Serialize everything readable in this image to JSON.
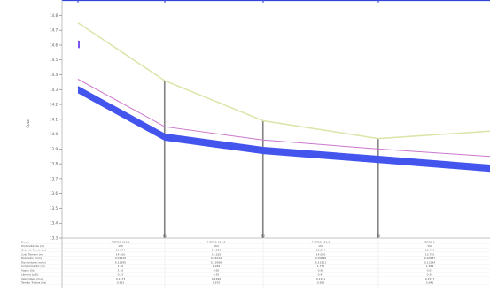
{
  "chart_data": {
    "type": "line",
    "ylabel": "Cota",
    "y_ticks": [
      14.8,
      14.7,
      14.6,
      14.5,
      14.4,
      14.3,
      14.2,
      14.1,
      14.0,
      13.9,
      13.8,
      13.7,
      13.6,
      13.5,
      13.4,
      13.3
    ],
    "ylim": [
      13.3,
      14.88
    ],
    "x": [
      0,
      1,
      2,
      3,
      4
    ],
    "node_labels": [
      "",
      "P1",
      "P2",
      "P3",
      ""
    ],
    "series": [
      {
        "color": "#d8e6a8",
        "values": [
          14.75,
          14.36,
          14.09,
          13.97,
          14.02
        ]
      },
      {
        "color": "#cc77cc",
        "values": [
          14.37,
          14.05,
          13.96,
          13.9,
          13.85
        ]
      },
      {
        "color": "#4455ee",
        "values": [
          14.32,
          14.0,
          13.91,
          13.85,
          13.79
        ]
      },
      {
        "color": "#4455ee",
        "values": [
          14.28,
          13.96,
          13.87,
          13.81,
          13.75
        ]
      }
    ],
    "left_marker": {
      "color": "#7a55ee",
      "y_range": [
        14.58,
        14.63
      ]
    },
    "grid": false,
    "table": {
      "row_labels": [
        "Nome",
        "Profundidade (m)",
        "Cota do Fundo (m)",
        "Cota Terreno (m)",
        "Diâmetro (mm)",
        "Declividade (m/m)",
        "Comprimento (m)",
        "Vazão (l/s)",
        "Lâmina (y/D)",
        "Velocidade (m/s)",
        "Tensão Trativa (Pa)"
      ],
      "columns": [
        [
          "P-BRCO 011.1",
          "150",
          "14.274",
          "14.400",
          "0.01210",
          "0.12995",
          "1.30",
          "1.19",
          "0.15",
          "0.1373",
          "0.853"
        ],
        [
          "P-BRCO 011.2",
          "150",
          "14.020",
          "14.150",
          "0.01014",
          "0.12996",
          "2.039",
          "0.90",
          "0.35",
          "0.1390",
          "0.670"
        ],
        [
          "P-BRCO 011.3",
          "150",
          "13.874",
          "14.000",
          "0.00696",
          "0.12911",
          "1.770",
          "0.98",
          "0.41",
          "0.1321",
          "0.851"
        ],
        [
          "BRCO 1",
          "150",
          "13.469",
          "13.750",
          "0.00987",
          "0.13134",
          "1.659",
          "0.67",
          "0.34",
          "0.1517",
          "0.841"
        ]
      ]
    }
  }
}
